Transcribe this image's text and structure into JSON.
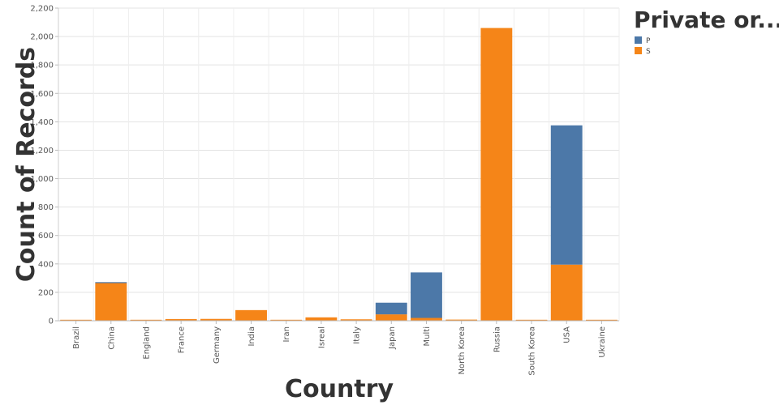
{
  "chart_data": {
    "type": "bar",
    "stacked": true,
    "xlabel": "Country",
    "ylabel": "Count of Records",
    "ylim": [
      0,
      2200
    ],
    "yticks": [
      0,
      200,
      400,
      600,
      800,
      1000,
      1200,
      1400,
      1600,
      1800,
      2000,
      2200
    ],
    "ytick_labels": [
      "0",
      "200",
      "400",
      "600",
      "800",
      "1,000",
      "1,200",
      "1,400",
      "1,600",
      "1,800",
      "2,000",
      "2,200"
    ],
    "grid": true,
    "legend": {
      "title": "Private or...",
      "position": "right"
    },
    "categories": [
      "Brazil",
      "China",
      "England",
      "France",
      "Germany",
      "India",
      "Iran",
      "Isreal",
      "Italy",
      "Japan",
      "Multi",
      "North Korea",
      "Russia",
      "South Korea",
      "USA",
      "Ukraine"
    ],
    "series": [
      {
        "name": "S",
        "color": "#f58518",
        "values": [
          4,
          265,
          2,
          12,
          13,
          75,
          1,
          24,
          10,
          45,
          20,
          8,
          2060,
          3,
          395,
          4
        ]
      },
      {
        "name": "P",
        "color": "#4c78a8",
        "values": [
          0,
          3,
          0,
          0,
          0,
          0,
          0,
          0,
          0,
          82,
          320,
          0,
          0,
          0,
          980,
          0
        ]
      }
    ]
  }
}
